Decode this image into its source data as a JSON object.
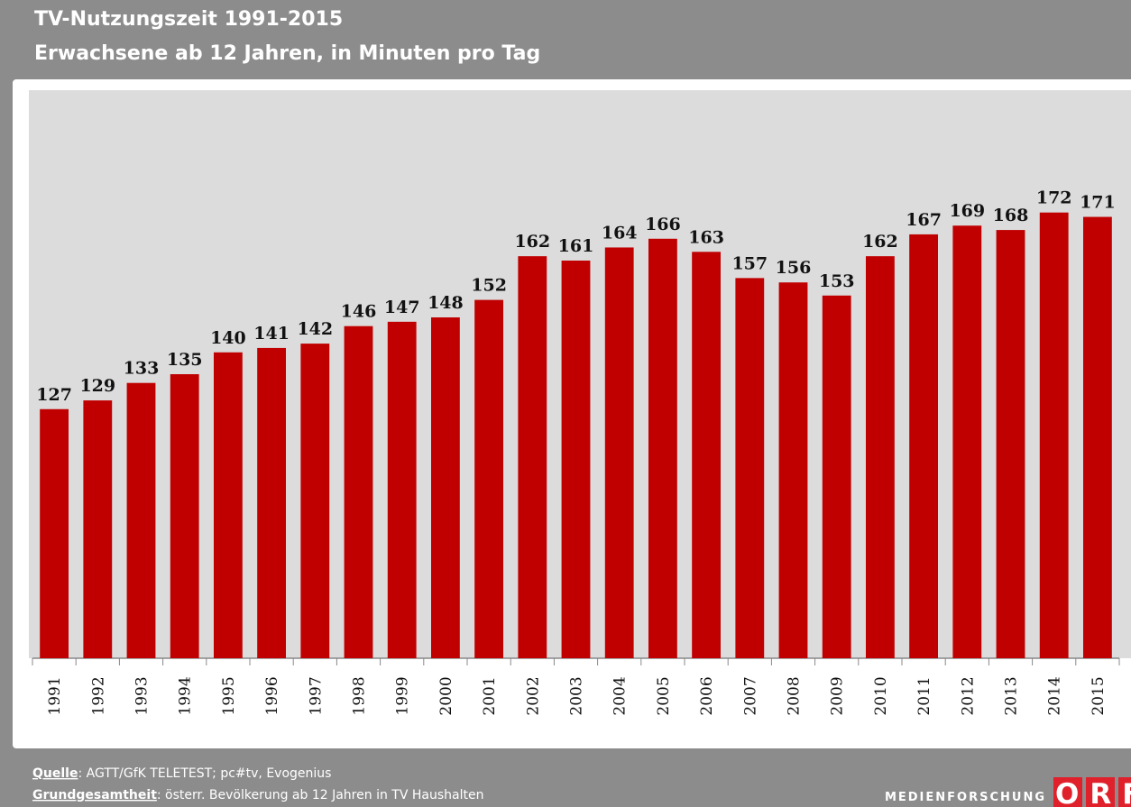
{
  "chart_data": {
    "type": "bar",
    "title": "TV-Nutzungszeit 1991-2015",
    "subtitle": "Erwachsene ab 12 Jahren, in Minuten pro Tag",
    "categories": [
      "1991",
      "1992",
      "1993",
      "1994",
      "1995",
      "1996",
      "1997",
      "1998",
      "1999",
      "2000",
      "2001",
      "2002",
      "2003",
      "2004",
      "2005",
      "2006",
      "2007",
      "2008",
      "2009",
      "2010",
      "2011",
      "2012",
      "2013",
      "2014",
      "2015"
    ],
    "values": [
      127,
      129,
      133,
      135,
      140,
      141,
      142,
      146,
      147,
      148,
      152,
      162,
      161,
      164,
      166,
      163,
      157,
      156,
      153,
      162,
      167,
      169,
      168,
      172,
      171
    ],
    "color": "#c00000",
    "ylim": [
      70,
      200
    ]
  },
  "footer": {
    "source_label": "Quelle",
    "source_text": ": AGTT/GfK TELETEST; pc#tv, Evogenius",
    "population_label": "Grundgesamtheit",
    "population_text": ": österr. Bevölkerung ab 12 Jahren in TV Haushalten",
    "logo_text": "MEDIENFORSCHUNG",
    "logo": "ORF"
  }
}
